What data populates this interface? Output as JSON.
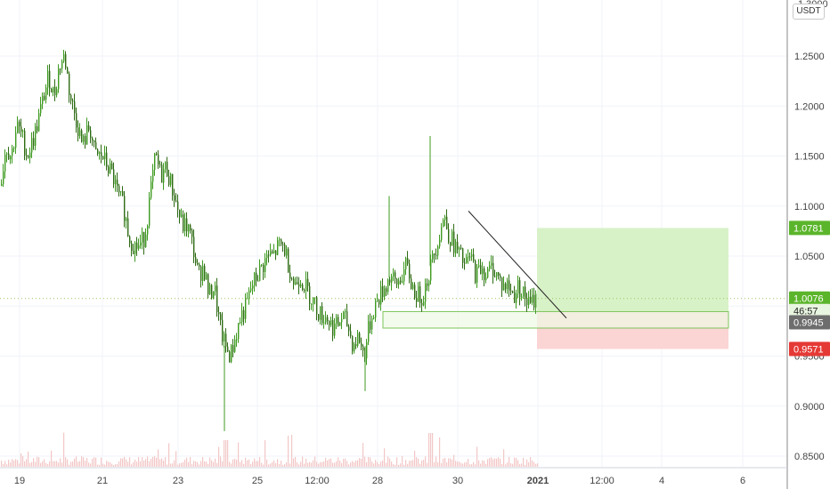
{
  "currency": "USDT",
  "colors": {
    "candle": "#3d9a1f",
    "candle_dark": "#2e6b14",
    "volume": "#f3c7c7",
    "grid": "#f0f3fa",
    "axis_line": "#888888",
    "current_line": "#9ec45a",
    "target_zone": "#d8f2c8",
    "stop_zone": "#fbd4d4",
    "support_box": "#eef9e6",
    "support_border": "#7cc45a",
    "tag_green": "#5bb52b",
    "tag_red": "#e53935",
    "tag_gray": "#6d6d6d"
  },
  "price_tags": {
    "target": "1.0781",
    "current": "1.0076",
    "countdown": "46:57",
    "entry": "0.9945",
    "stop": "0.9571"
  },
  "chart_data": {
    "type": "candlestick",
    "y_ticks": [
      "1.2500",
      "1.2000",
      "1.1500",
      "1.1000",
      "1.0500",
      "1.0000",
      "0.9500",
      "0.9000",
      "0.8500"
    ],
    "y_tick_values": [
      1.25,
      1.2,
      1.15,
      1.1,
      1.05,
      1.0,
      0.95,
      0.9,
      0.85
    ],
    "x_ticks": [
      "19",
      "21",
      "23",
      "25",
      "12:00",
      "28",
      "30",
      "2021",
      "12:00",
      "4",
      "6"
    ],
    "ylim": [
      0.84,
      1.27
    ],
    "close_path": [
      [
        0,
        1.12
      ],
      [
        6,
        1.16
      ],
      [
        12,
        1.15
      ],
      [
        18,
        1.18
      ],
      [
        24,
        1.17
      ],
      [
        30,
        1.15
      ],
      [
        38,
        1.17
      ],
      [
        46,
        1.2
      ],
      [
        54,
        1.23
      ],
      [
        60,
        1.21
      ],
      [
        66,
        1.24
      ],
      [
        72,
        1.25
      ],
      [
        78,
        1.21
      ],
      [
        84,
        1.19
      ],
      [
        92,
        1.16
      ],
      [
        100,
        1.18
      ],
      [
        106,
        1.15
      ],
      [
        114,
        1.15
      ],
      [
        120,
        1.14
      ],
      [
        126,
        1.13
      ],
      [
        132,
        1.11
      ],
      [
        138,
        1.1
      ],
      [
        144,
        1.07
      ],
      [
        150,
        1.06
      ],
      [
        156,
        1.06
      ],
      [
        162,
        1.07
      ],
      [
        168,
        1.11
      ],
      [
        174,
        1.15
      ],
      [
        180,
        1.13
      ],
      [
        186,
        1.14
      ],
      [
        192,
        1.12
      ],
      [
        198,
        1.1
      ],
      [
        204,
        1.08
      ],
      [
        210,
        1.08
      ],
      [
        216,
        1.06
      ],
      [
        222,
        1.03
      ],
      [
        228,
        1.04
      ],
      [
        234,
        1.01
      ],
      [
        240,
        1.02
      ],
      [
        246,
        0.98
      ],
      [
        252,
        0.96
      ],
      [
        258,
        0.95
      ],
      [
        264,
        0.97
      ],
      [
        270,
        0.99
      ],
      [
        276,
        1.0
      ],
      [
        282,
        1.02
      ],
      [
        288,
        1.03
      ],
      [
        294,
        1.04
      ],
      [
        300,
        1.05
      ],
      [
        306,
        1.05
      ],
      [
        312,
        1.06
      ],
      [
        318,
        1.06
      ],
      [
        324,
        1.04
      ],
      [
        330,
        1.02
      ],
      [
        336,
        1.03
      ],
      [
        342,
        1.02
      ],
      [
        348,
        1.01
      ],
      [
        354,
        1.0
      ],
      [
        360,
        0.99
      ],
      [
        366,
        0.99
      ],
      [
        372,
        0.98
      ],
      [
        378,
        0.98
      ],
      [
        384,
        0.99
      ],
      [
        390,
        0.98
      ],
      [
        396,
        0.96
      ],
      [
        402,
        0.97
      ],
      [
        408,
        0.95
      ],
      [
        414,
        0.98
      ],
      [
        420,
        1.0
      ],
      [
        426,
        1.01
      ],
      [
        432,
        1.02
      ],
      [
        438,
        1.03
      ],
      [
        444,
        1.02
      ],
      [
        450,
        1.03
      ],
      [
        456,
        1.04
      ],
      [
        462,
        1.02
      ],
      [
        468,
        1.01
      ],
      [
        474,
        1.01
      ],
      [
        480,
        1.03
      ],
      [
        486,
        1.05
      ],
      [
        492,
        1.07
      ],
      [
        498,
        1.09
      ],
      [
        504,
        1.07
      ],
      [
        510,
        1.06
      ],
      [
        516,
        1.05
      ],
      [
        522,
        1.04
      ],
      [
        528,
        1.05
      ],
      [
        534,
        1.03
      ],
      [
        540,
        1.04
      ],
      [
        546,
        1.03
      ],
      [
        552,
        1.04
      ],
      [
        558,
        1.03
      ],
      [
        564,
        1.02
      ],
      [
        570,
        1.02
      ],
      [
        576,
        1.01
      ],
      [
        582,
        1.02
      ],
      [
        588,
        1.01
      ],
      [
        594,
        1.0
      ],
      [
        600,
        1.0076
      ]
    ],
    "spikes": [
      {
        "x": 483,
        "high": 1.17
      },
      {
        "x": 437,
        "high": 1.11
      },
      {
        "x": 252,
        "low": 0.875
      },
      {
        "x": 410,
        "low": 0.915
      }
    ],
    "trendline": {
      "start": {
        "x": 526,
        "price": 1.095
      },
      "end": {
        "x": 636,
        "price": 0.988
      }
    },
    "support_zone": {
      "x_start": 430,
      "x_end": 818,
      "top": 0.9945,
      "bottom": 0.978
    },
    "position": {
      "x_start": 603,
      "x_end": 818,
      "target": 1.0781,
      "entry": 0.9945,
      "stop": 0.9571
    }
  }
}
